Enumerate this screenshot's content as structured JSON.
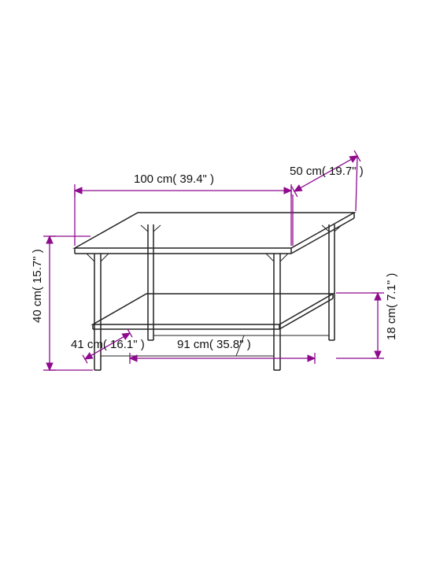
{
  "type": "dimensioned-diagram",
  "background_color": "#ffffff",
  "dim_line_color": "#8e0a8e",
  "table_line_color": "#222222",
  "label_color": "#111111",
  "label_fontsize": 15,
  "dimensions": {
    "width_top": {
      "text": "100 cm( 39.4\" )"
    },
    "depth_top": {
      "text": "50 cm( 19.7\" )"
    },
    "height_left": {
      "text": "40 cm( 15.7\" )"
    },
    "shelf_depth_left": {
      "text": "41 cm( 16.1\" )"
    },
    "shelf_width": {
      "text": "91 cm( 35.8\" )"
    },
    "shelf_height_right": {
      "text": "18 cm( 7.1\" )"
    }
  },
  "arrow": {
    "len": 9,
    "half": 4
  }
}
